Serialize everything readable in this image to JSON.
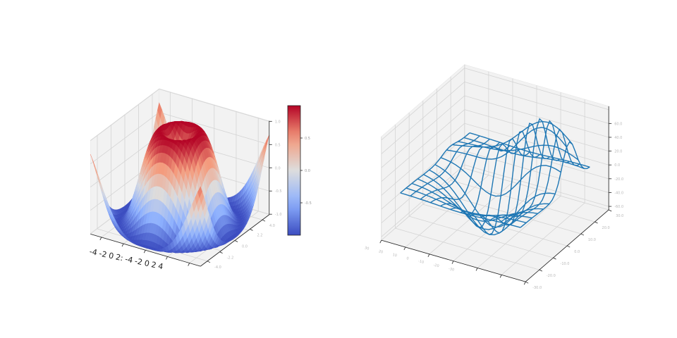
{
  "chart_data": [
    {
      "type": "surface",
      "title": "",
      "xlabel": "",
      "ylabel": "",
      "zlabel": "",
      "function": "z = sin(sqrt(x^2 + y^2))",
      "xlim": [
        -5,
        5
      ],
      "ylim": [
        -5,
        5
      ],
      "zlim": [
        -1.01,
        1.01
      ],
      "colormap": "coolwarm",
      "pane_color": "#f2f2f2",
      "grid": true,
      "x_tick_labels": [
        "-4",
        "-2",
        "0",
        "2",
        ":",
        "-4",
        "-2",
        "0",
        "2",
        "4"
      ],
      "y_tick_labels": [
        "4.0",
        "2.2",
        "0.0",
        "-2.2",
        "-4.0"
      ],
      "z_tick_labels": [
        "1.0",
        "0.5",
        "0.0",
        "-0.5",
        "-1.0"
      ],
      "colorbar": {
        "orientation": "vertical",
        "range": [
          -1,
          1
        ],
        "tick_labels": [
          "0.5",
          "0.0",
          "-0.5"
        ]
      }
    },
    {
      "type": "wireframe",
      "title": "",
      "xlabel": "",
      "ylabel": "",
      "zlabel": "",
      "xlim": [
        -30,
        30
      ],
      "ylim": [
        -30,
        30
      ],
      "zlim": [
        -65,
        85
      ],
      "line_color": "#1f77b4",
      "pane_color": "#f2f2f2",
      "grid": true,
      "x_tick_labels": [
        "30",
        "20",
        "10",
        "0",
        "-10",
        "-20",
        "-30"
      ],
      "y_tick_labels": [
        "30.0",
        "20.0",
        "10.0",
        "0.0",
        "-10.0",
        "-20.0",
        "-30.0"
      ],
      "z_tick_labels": [
        "60.0",
        "40.0",
        "20.0",
        "0.0",
        "-20.0",
        "-40.0",
        "-60.0"
      ]
    }
  ]
}
